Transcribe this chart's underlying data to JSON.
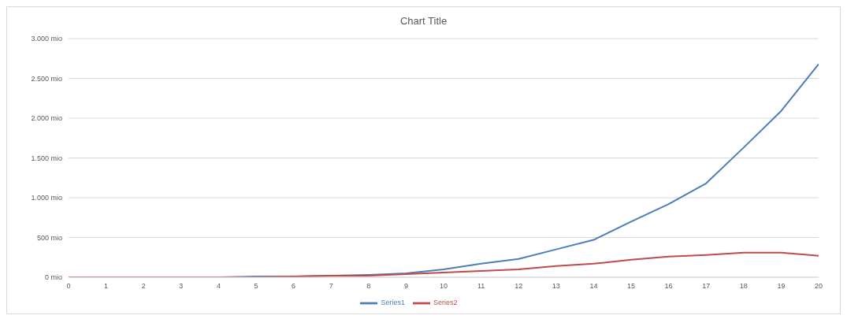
{
  "chart_data": {
    "type": "line",
    "title": "Chart Title",
    "x": [
      0,
      1,
      2,
      3,
      4,
      5,
      6,
      7,
      8,
      9,
      10,
      11,
      12,
      13,
      14,
      15,
      16,
      17,
      18,
      19,
      20
    ],
    "xlim": [
      0,
      20
    ],
    "xticks": [
      0,
      1,
      2,
      3,
      4,
      5,
      6,
      7,
      8,
      9,
      10,
      11,
      12,
      13,
      14,
      15,
      16,
      17,
      18,
      19,
      20
    ],
    "series": [
      {
        "name": "Series1",
        "color": "#4a7ebb",
        "values": [
          null,
          null,
          null,
          null,
          0,
          10,
          10,
          20,
          30,
          50,
          100,
          170,
          230,
          350,
          470,
          700,
          920,
          1180,
          1630,
          2090,
          2680
        ]
      },
      {
        "name": "Series2",
        "color": "#be4b48",
        "values": [
          0,
          0,
          0,
          0,
          0,
          0,
          10,
          20,
          20,
          40,
          60,
          80,
          100,
          140,
          170,
          220,
          260,
          280,
          310,
          310,
          270
        ]
      }
    ],
    "ylim": [
      0,
      3000
    ],
    "yticks": [
      {
        "value": 0,
        "label": "0 mio"
      },
      {
        "value": 500,
        "label": "500 mio"
      },
      {
        "value": 1000,
        "label": "1.000 mio"
      },
      {
        "value": 1500,
        "label": "1.500 mio"
      },
      {
        "value": 2000,
        "label": "2.000 mio"
      },
      {
        "value": 2500,
        "label": "2.500 mio"
      },
      {
        "value": 3000,
        "label": "3.000 mio"
      }
    ],
    "grid": "y",
    "legend": "bottom",
    "marker": "none",
    "line_style": "solid"
  }
}
